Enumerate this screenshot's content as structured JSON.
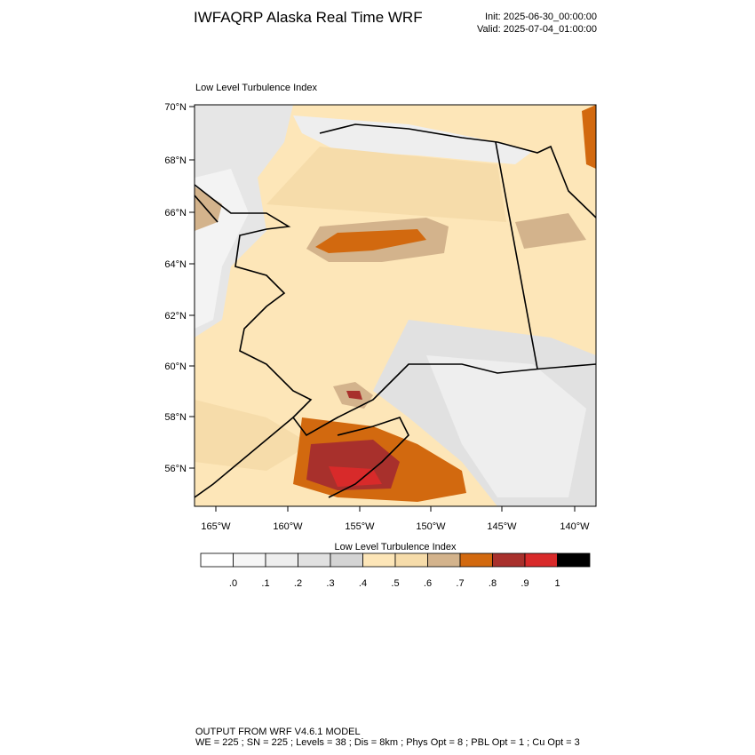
{
  "header": {
    "title": "IWFAQRP Alaska Real Time WRF",
    "init": "Init: 2025-06-30_00:00:00",
    "valid": "Valid: 2025-07-04_01:00:00"
  },
  "map": {
    "subtitle": "Low Level Turbulence Index",
    "lat_labels": [
      "70°N",
      "68°N",
      "66°N",
      "64°N",
      "62°N",
      "60°N",
      "58°N",
      "56°N"
    ],
    "lon_labels": [
      "165°W",
      "160°W",
      "155°W",
      "150°W",
      "145°W",
      "140°W"
    ]
  },
  "colorbar": {
    "title": "Low Level Turbulence Index",
    "colors": [
      "#ffffff",
      "#f6f6f6",
      "#eeeeee",
      "#e1e1e1",
      "#d4d4d4",
      "#fde6b8",
      "#f6dcaa",
      "#d3b38c",
      "#d2690f",
      "#a8302c",
      "#d82a2a",
      "#000000"
    ],
    "labels": [
      ".0",
      ".1",
      ".2",
      ".3",
      ".4",
      ".5",
      ".6",
      ".7",
      ".8",
      ".9",
      "1"
    ]
  },
  "footer": {
    "line1": "OUTPUT FROM WRF V4.6.1 MODEL",
    "line2": "WE = 225 ; SN = 225 ; Levels = 38 ; Dis = 8km ; Phys Opt = 8 ; PBL Opt = 1 ; Cu Opt = 3"
  }
}
